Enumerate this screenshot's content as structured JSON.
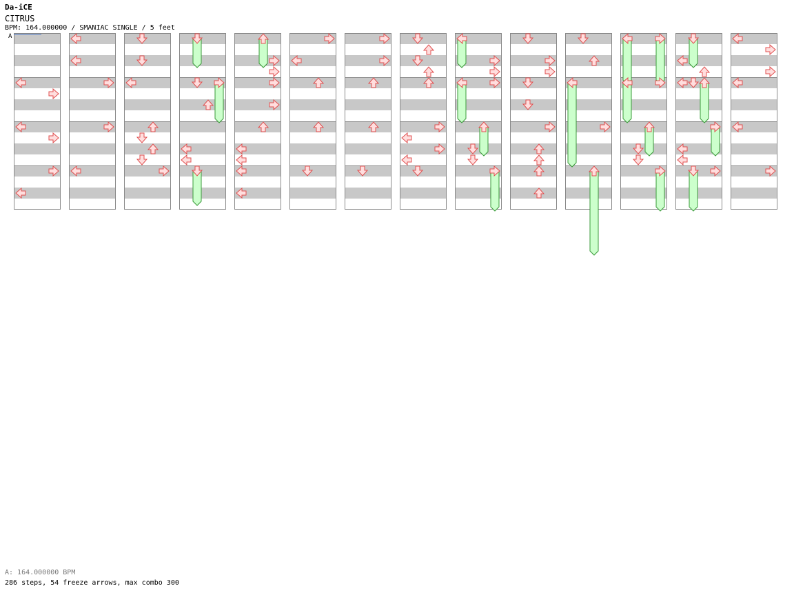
{
  "header": {
    "artist": "Da-iCE",
    "title": "CITRUS",
    "info": "BPM: 164.000000 / SMANIAC SINGLE / 5 feet"
  },
  "bpm_marker": "A",
  "footer": {
    "bpm_line": "A: 164.000000 BPM",
    "stats": "286 steps, 54 freeze arrows, max combo 300"
  },
  "colors": {
    "stripe": "#c8c8c8",
    "border": "#888888",
    "arrow_fill": "#ffdede",
    "arrow_stroke": "#e05050",
    "freeze_fill": "#ccffcc",
    "freeze_stroke": "#3a9a3a"
  },
  "chart_data": {
    "columns": 14,
    "measures_per_column": 4,
    "beats_per_measure": 4,
    "lanes": [
      "left",
      "down",
      "up",
      "right"
    ],
    "notes": [
      {
        "c": 1,
        "m": 1,
        "b": 0,
        "l": "left"
      },
      {
        "c": 1,
        "m": 1,
        "b": 1,
        "l": "right"
      },
      {
        "c": 1,
        "m": 2,
        "b": 0,
        "l": "left"
      },
      {
        "c": 1,
        "m": 2,
        "b": 1,
        "l": "right"
      },
      {
        "c": 1,
        "m": 3,
        "b": 0,
        "l": "right"
      },
      {
        "c": 1,
        "m": 3,
        "b": 2,
        "l": "left"
      },
      {
        "c": 2,
        "m": 0,
        "b": 0,
        "l": "left"
      },
      {
        "c": 2,
        "m": 0,
        "b": 2,
        "l": "left"
      },
      {
        "c": 2,
        "m": 1,
        "b": 0,
        "l": "right"
      },
      {
        "c": 2,
        "m": 2,
        "b": 0,
        "l": "right"
      },
      {
        "c": 2,
        "m": 3,
        "b": 0,
        "l": "left"
      },
      {
        "c": 3,
        "m": 0,
        "b": 0,
        "l": "down"
      },
      {
        "c": 3,
        "m": 0,
        "b": 2,
        "l": "down"
      },
      {
        "c": 3,
        "m": 1,
        "b": 0,
        "l": "left"
      },
      {
        "c": 3,
        "m": 2,
        "b": 0,
        "l": "up"
      },
      {
        "c": 3,
        "m": 2,
        "b": 1,
        "l": "down"
      },
      {
        "c": 3,
        "m": 2,
        "b": 2,
        "l": "up"
      },
      {
        "c": 3,
        "m": 2,
        "b": 3,
        "l": "down"
      },
      {
        "c": 3,
        "m": 3,
        "b": 0,
        "l": "right"
      },
      {
        "c": 4,
        "m": 1,
        "b": 0,
        "l": "down"
      },
      {
        "c": 4,
        "m": 1,
        "b": 2,
        "l": "up"
      },
      {
        "c": 4,
        "m": 2,
        "b": 2,
        "l": "left"
      },
      {
        "c": 4,
        "m": 2,
        "b": 3,
        "l": "left"
      },
      {
        "c": 5,
        "m": 0,
        "b": 2,
        "l": "right"
      },
      {
        "c": 5,
        "m": 0,
        "b": 3,
        "l": "right"
      },
      {
        "c": 5,
        "m": 1,
        "b": 0,
        "l": "right"
      },
      {
        "c": 5,
        "m": 1,
        "b": 2,
        "l": "right"
      },
      {
        "c": 5,
        "m": 2,
        "b": 0,
        "l": "up"
      },
      {
        "c": 5,
        "m": 2,
        "b": 2,
        "l": "left"
      },
      {
        "c": 5,
        "m": 2,
        "b": 3,
        "l": "left"
      },
      {
        "c": 5,
        "m": 3,
        "b": 0,
        "l": "left"
      },
      {
        "c": 5,
        "m": 3,
        "b": 2,
        "l": "left"
      },
      {
        "c": 6,
        "m": 0,
        "b": 0,
        "l": "right"
      },
      {
        "c": 6,
        "m": 0,
        "b": 2,
        "l": "left"
      },
      {
        "c": 6,
        "m": 1,
        "b": 0,
        "l": "up"
      },
      {
        "c": 6,
        "m": 2,
        "b": 0,
        "l": "up"
      },
      {
        "c": 6,
        "m": 3,
        "b": 0,
        "l": "down"
      },
      {
        "c": 7,
        "m": 0,
        "b": 0,
        "l": "right"
      },
      {
        "c": 7,
        "m": 0,
        "b": 2,
        "l": "right"
      },
      {
        "c": 7,
        "m": 1,
        "b": 0,
        "l": "up"
      },
      {
        "c": 7,
        "m": 2,
        "b": 0,
        "l": "up"
      },
      {
        "c": 7,
        "m": 3,
        "b": 0,
        "l": "down"
      },
      {
        "c": 8,
        "m": 0,
        "b": 0,
        "l": "down"
      },
      {
        "c": 8,
        "m": 0,
        "b": 1,
        "l": "up"
      },
      {
        "c": 8,
        "m": 0,
        "b": 2,
        "l": "down"
      },
      {
        "c": 8,
        "m": 0,
        "b": 3,
        "l": "up"
      },
      {
        "c": 8,
        "m": 1,
        "b": 0,
        "l": "up"
      },
      {
        "c": 8,
        "m": 2,
        "b": 0,
        "l": "right"
      },
      {
        "c": 8,
        "m": 2,
        "b": 1,
        "l": "left"
      },
      {
        "c": 8,
        "m": 2,
        "b": 2,
        "l": "right"
      },
      {
        "c": 8,
        "m": 2,
        "b": 3,
        "l": "left"
      },
      {
        "c": 8,
        "m": 3,
        "b": 0,
        "l": "down"
      },
      {
        "c": 9,
        "m": 0,
        "b": 2,
        "l": "right"
      },
      {
        "c": 9,
        "m": 0,
        "b": 3,
        "l": "right"
      },
      {
        "c": 9,
        "m": 1,
        "b": 0,
        "l": "right"
      },
      {
        "c": 9,
        "m": 2,
        "b": 2,
        "l": "down"
      },
      {
        "c": 9,
        "m": 2,
        "b": 3,
        "l": "down"
      },
      {
        "c": 10,
        "m": 0,
        "b": 0,
        "l": "down"
      },
      {
        "c": 10,
        "m": 0,
        "b": 2,
        "l": "right"
      },
      {
        "c": 10,
        "m": 0,
        "b": 3,
        "l": "right"
      },
      {
        "c": 10,
        "m": 1,
        "b": 0,
        "l": "down"
      },
      {
        "c": 10,
        "m": 1,
        "b": 2,
        "l": "down"
      },
      {
        "c": 10,
        "m": 2,
        "b": 0,
        "l": "right"
      },
      {
        "c": 10,
        "m": 2,
        "b": 2,
        "l": "up"
      },
      {
        "c": 10,
        "m": 2,
        "b": 3,
        "l": "up"
      },
      {
        "c": 10,
        "m": 3,
        "b": 0,
        "l": "up"
      },
      {
        "c": 10,
        "m": 3,
        "b": 2,
        "l": "up"
      },
      {
        "c": 11,
        "m": 0,
        "b": 0,
        "l": "down"
      },
      {
        "c": 11,
        "m": 0,
        "b": 2,
        "l": "up"
      },
      {
        "c": 11,
        "m": 2,
        "b": 0,
        "l": "right"
      },
      {
        "c": 12,
        "m": 1,
        "b": 0,
        "l": "left"
      },
      {
        "c": 12,
        "m": 1,
        "b": 0,
        "l": "right"
      },
      {
        "c": 12,
        "m": 2,
        "b": 2,
        "l": "down"
      },
      {
        "c": 12,
        "m": 2,
        "b": 3,
        "l": "down"
      },
      {
        "c": 13,
        "m": 0,
        "b": 2,
        "l": "left"
      },
      {
        "c": 13,
        "m": 0,
        "b": 3,
        "l": "up"
      },
      {
        "c": 13,
        "m": 1,
        "b": 0,
        "l": "down"
      },
      {
        "c": 13,
        "m": 1,
        "b": 0,
        "l": "left"
      },
      {
        "c": 13,
        "m": 2,
        "b": 2,
        "l": "left"
      },
      {
        "c": 13,
        "m": 2,
        "b": 3,
        "l": "left"
      },
      {
        "c": 13,
        "m": 3,
        "b": 0,
        "l": "right"
      },
      {
        "c": 14,
        "m": 0,
        "b": 0,
        "l": "left"
      },
      {
        "c": 14,
        "m": 0,
        "b": 1,
        "l": "right"
      },
      {
        "c": 14,
        "m": 0,
        "b": 3,
        "l": "right"
      },
      {
        "c": 14,
        "m": 1,
        "b": 0,
        "l": "left"
      },
      {
        "c": 14,
        "m": 2,
        "b": 0,
        "l": "left"
      },
      {
        "c": 14,
        "m": 3,
        "b": 0,
        "l": "right"
      }
    ],
    "freezes": [
      {
        "c": 4,
        "m": 0,
        "b": 0,
        "l": "down",
        "len": 2.5
      },
      {
        "c": 4,
        "m": 1,
        "b": 0,
        "l": "right",
        "len": 3.5
      },
      {
        "c": 4,
        "m": 3,
        "b": 0,
        "l": "down",
        "len": 3
      },
      {
        "c": 5,
        "m": 0,
        "b": 0,
        "l": "up",
        "len": 2.5
      },
      {
        "c": 9,
        "m": 0,
        "b": 0,
        "l": "left",
        "len": 2.5
      },
      {
        "c": 9,
        "m": 1,
        "b": 0,
        "l": "left",
        "len": 3.5
      },
      {
        "c": 9,
        "m": 2,
        "b": 0,
        "l": "up",
        "len": 2.5
      },
      {
        "c": 9,
        "m": 3,
        "b": 0,
        "l": "right",
        "len": 3.5
      },
      {
        "c": 11,
        "m": 1,
        "b": 0,
        "l": "left",
        "len": 7.5
      },
      {
        "c": 11,
        "m": 3,
        "b": 0,
        "l": "up",
        "len": 7.5
      },
      {
        "c": 12,
        "m": 0,
        "b": 0,
        "l": "left",
        "len": 4
      },
      {
        "c": 12,
        "m": 0,
        "b": 0,
        "l": "right",
        "len": 4
      },
      {
        "c": 12,
        "m": 1,
        "b": 0,
        "l": "left",
        "len": 3.5
      },
      {
        "c": 12,
        "m": 2,
        "b": 0,
        "l": "up",
        "len": 2.5
      },
      {
        "c": 12,
        "m": 3,
        "b": 0,
        "l": "right",
        "len": 3.5
      },
      {
        "c": 13,
        "m": 0,
        "b": 0,
        "l": "down",
        "len": 2.5
      },
      {
        "c": 13,
        "m": 1,
        "b": 0,
        "l": "up",
        "len": 3.5
      },
      {
        "c": 13,
        "m": 2,
        "b": 0,
        "l": "right",
        "len": 2.5
      },
      {
        "c": 13,
        "m": 3,
        "b": 0,
        "l": "down",
        "len": 3.5
      }
    ]
  }
}
